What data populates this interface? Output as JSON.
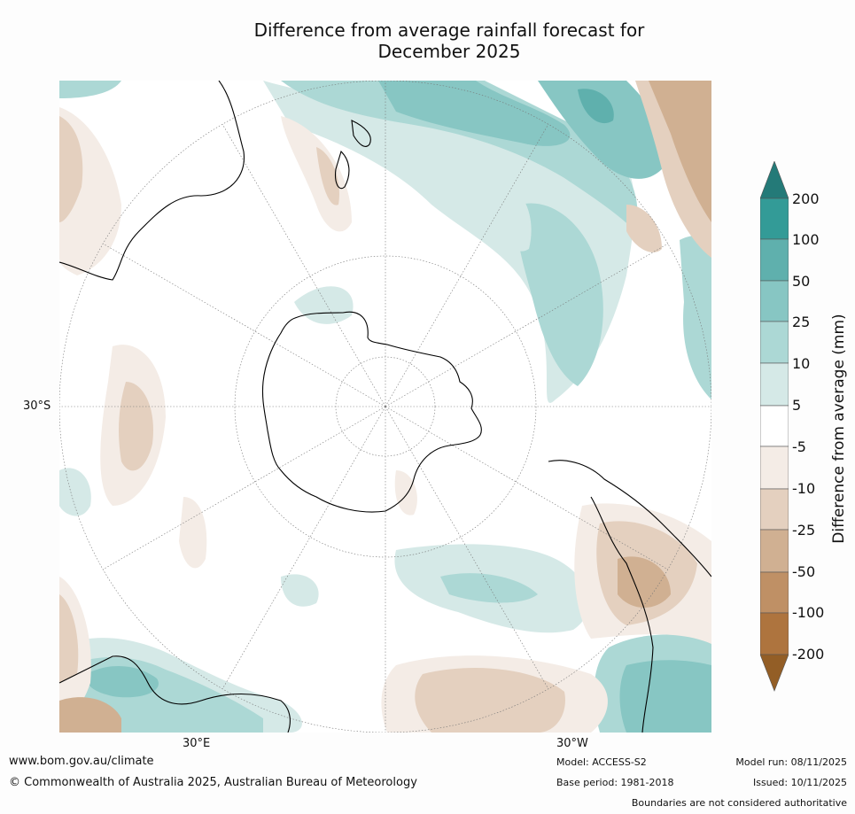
{
  "title": {
    "line1": "Difference from average rainfall forecast for",
    "line2": "December 2025"
  },
  "map": {
    "projection": "south-polar stereographic",
    "lat_label": "30°S",
    "lon_labels": [
      "30°E",
      "30°W"
    ]
  },
  "colorbar": {
    "label": "Difference from average (mm)",
    "ticks": [
      "200",
      "100",
      "50",
      "25",
      "10",
      "5",
      "-5",
      "-10",
      "-25",
      "-50",
      "-100",
      "-200"
    ],
    "colors": {
      "above_200": "#247a78",
      "100_200": "#339b97",
      "50_100": "#5fb0ad",
      "25_50": "#87c6c3",
      "10_25": "#acd8d5",
      "5_10": "#d5e9e7",
      "neutral": "#ffffff",
      "neg5_neg10": "#f4ece6",
      "neg10_neg25": "#e4d0bf",
      "neg25_neg50": "#d0b092",
      "neg50_neg100": "#bf9065",
      "neg100_neg200": "#ae743e",
      "below_neg200": "#935e26"
    }
  },
  "footer": {
    "website": "www.bom.gov.au/climate",
    "copyright": "© Commonwealth of Australia 2025, Australian Bureau of Meteorology",
    "model": "Model: ACCESS-S2",
    "base_period": "Base period: 1981-2018",
    "model_run": "Model run: 08/11/2025",
    "issued": "Issued: 10/11/2025",
    "disclaimer": "Boundaries are not considered authoritative"
  }
}
